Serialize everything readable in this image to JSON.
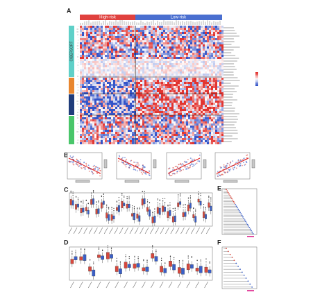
{
  "panels": {
    "a": {
      "label": "A",
      "groups": [
        "High-risk",
        "Low-risk"
      ],
      "methods": [
        "CIBERSORT"
      ]
    },
    "b": {
      "label": "B"
    },
    "c": {
      "label": "C"
    },
    "d": {
      "label": "D"
    },
    "e": {
      "label": "E"
    },
    "f": {
      "label": "F"
    }
  }
}
